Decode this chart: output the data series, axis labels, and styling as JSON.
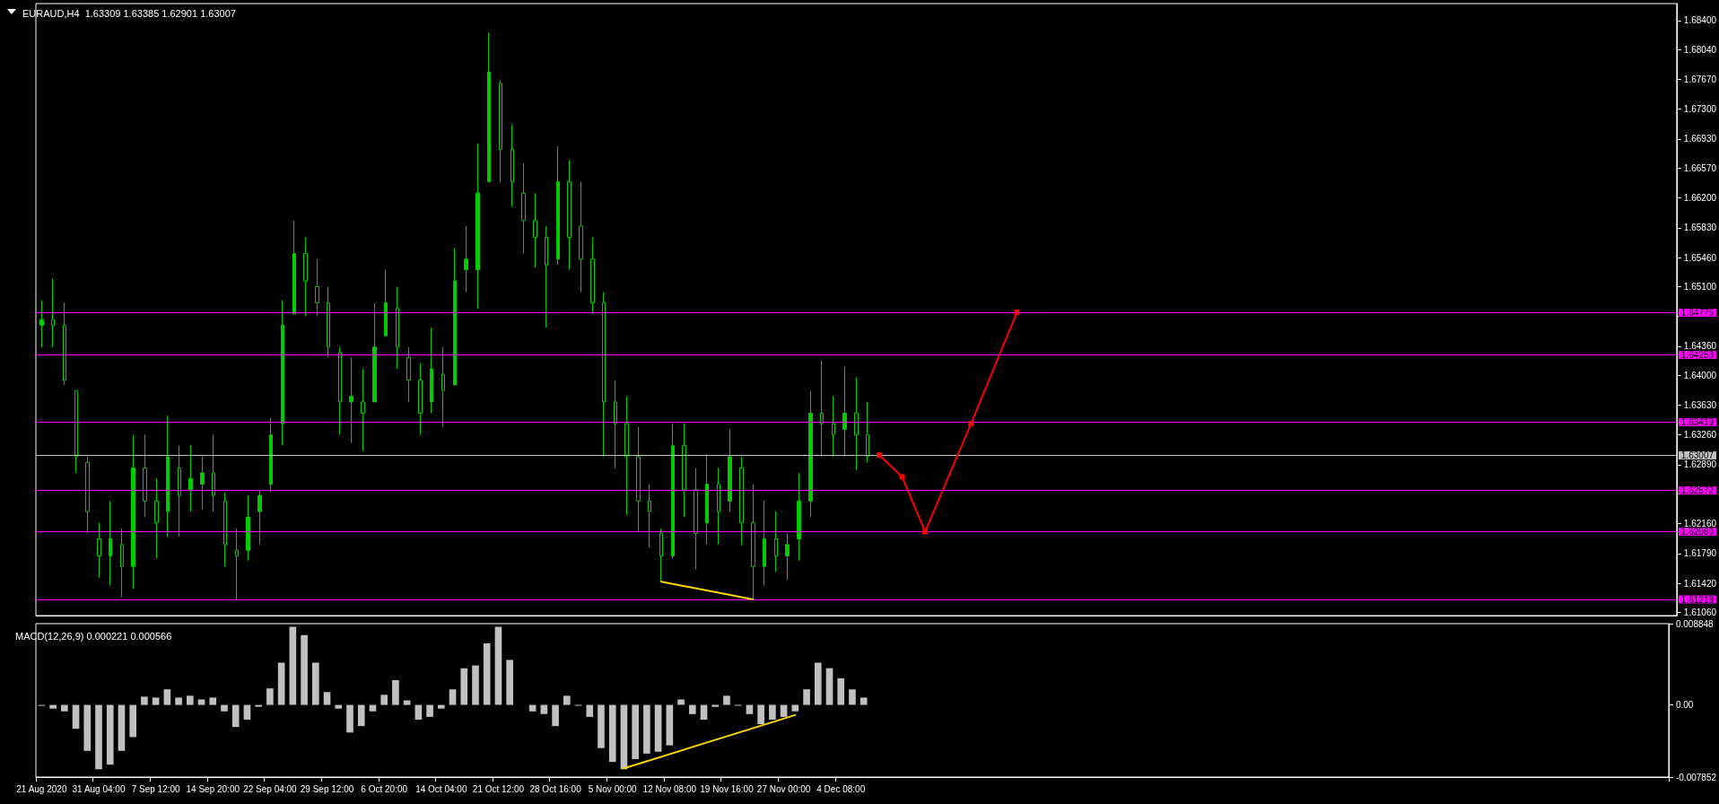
{
  "chart_data": [
    {
      "type": "candlestick",
      "title": "EURAUD,H4  1.63309 1.63385 1.62901 1.63007",
      "color": "#00cc00",
      "tick_labels": "y",
      "grid": false,
      "categories": [
        null,
        null,
        null,
        null,
        null,
        null,
        null,
        null,
        null,
        null,
        null,
        null,
        null,
        null,
        null,
        null,
        null,
        null,
        null,
        null,
        null,
        null,
        null,
        null,
        null,
        null,
        null,
        null,
        null,
        null,
        null,
        null,
        null,
        null,
        null,
        null,
        null,
        null,
        null,
        null,
        null,
        null,
        null,
        null,
        null,
        null,
        null,
        null,
        null,
        null,
        null,
        null,
        null,
        null,
        null,
        null,
        null,
        null,
        null,
        null,
        null,
        null,
        null,
        null,
        null,
        null,
        null,
        null,
        null,
        null,
        null,
        null,
        null,
        null,
        null,
        null,
        null,
        null,
        null,
        null,
        null,
        null,
        null,
        null,
        null,
        null,
        null,
        null,
        null,
        null,
        null,
        null,
        null,
        null,
        null,
        null,
        null,
        null,
        null,
        null,
        null,
        null,
        null,
        null,
        null,
        null,
        null,
        null,
        null,
        null,
        null,
        null,
        null,
        null,
        null,
        null,
        null,
        null,
        null,
        null,
        null,
        null,
        null,
        null,
        null,
        null,
        null,
        null,
        null,
        null,
        null,
        null,
        null,
        null,
        null,
        null,
        null,
        null,
        null,
        null,
        null,
        null,
        null
      ],
      "ohlc": [
        [
          1.6462,
          1.6493,
          1.6435,
          1.6469
        ],
        [
          1.6469,
          1.652,
          1.6435,
          1.6462
        ],
        [
          1.6462,
          1.649,
          1.6388,
          1.6394
        ],
        [
          1.6381,
          1.6381,
          1.6279,
          1.6299
        ],
        [
          1.6292,
          1.6299,
          1.6204,
          1.6231
        ],
        [
          1.6197,
          1.6217,
          1.6149,
          1.6176
        ],
        [
          1.6176,
          1.6244,
          1.6139,
          1.6197
        ],
        [
          1.619,
          1.621,
          1.6125,
          1.6163
        ],
        [
          1.6163,
          1.6326,
          1.6135,
          1.6285
        ],
        [
          1.6285,
          1.6326,
          1.6224,
          1.6244
        ],
        [
          1.6244,
          1.6272,
          1.6173,
          1.6217
        ],
        [
          1.6231,
          1.635,
          1.62,
          1.6299
        ],
        [
          1.6285,
          1.6313,
          1.62,
          1.6251
        ],
        [
          1.6258,
          1.6313,
          1.6231,
          1.6272
        ],
        [
          1.6265,
          1.6299,
          1.6234,
          1.6279
        ],
        [
          1.6279,
          1.6326,
          1.6231,
          1.6251
        ],
        [
          1.6244,
          1.6255,
          1.6163,
          1.619
        ],
        [
          1.6183,
          1.621,
          1.6122,
          1.6176
        ],
        [
          1.6183,
          1.6251,
          1.617,
          1.6224
        ],
        [
          1.6231,
          1.6258,
          1.619,
          1.6251
        ],
        [
          1.6265,
          1.6347,
          1.6255,
          1.6326
        ],
        [
          1.634,
          1.6493,
          1.6313,
          1.6462
        ],
        [
          1.6476,
          1.6592,
          1.6476,
          1.6551
        ],
        [
          1.6551,
          1.6571,
          1.6473,
          1.6517
        ],
        [
          1.651,
          1.6544,
          1.6473,
          1.649
        ],
        [
          1.649,
          1.651,
          1.6422,
          1.6435
        ],
        [
          1.6428,
          1.6435,
          1.6326,
          1.6367
        ],
        [
          1.6367,
          1.6422,
          1.6316,
          1.6374
        ],
        [
          1.6367,
          1.6408,
          1.6306,
          1.6353
        ],
        [
          1.6367,
          1.649,
          1.6367,
          1.6435
        ],
        [
          1.6449,
          1.6531,
          1.6449,
          1.649
        ],
        [
          1.6483,
          1.651,
          1.6408,
          1.6435
        ],
        [
          1.6422,
          1.6435,
          1.6367,
          1.6394
        ],
        [
          1.6394,
          1.6415,
          1.6326,
          1.6353
        ],
        [
          1.6367,
          1.6459,
          1.6353,
          1.6408
        ],
        [
          1.6401,
          1.6435,
          1.6336,
          1.6381
        ],
        [
          1.6388,
          1.6558,
          1.6388,
          1.6517
        ],
        [
          1.6531,
          1.6585,
          1.6503,
          1.6544
        ],
        [
          1.6531,
          1.6687,
          1.6483,
          1.6626
        ],
        [
          1.664,
          1.6825,
          1.664,
          1.6776
        ],
        [
          1.6762,
          1.6766,
          1.664,
          1.668
        ],
        [
          1.668,
          1.6711,
          1.6609,
          1.664
        ],
        [
          1.6626,
          1.6663,
          1.6551,
          1.6592
        ],
        [
          1.6592,
          1.6626,
          1.6534,
          1.6571
        ],
        [
          1.6571,
          1.6585,
          1.6459,
          1.6537
        ],
        [
          1.6544,
          1.6684,
          1.6537,
          1.664
        ],
        [
          1.664,
          1.6667,
          1.6531,
          1.6571
        ],
        [
          1.6585,
          1.664,
          1.6503,
          1.6544
        ],
        [
          1.6544,
          1.6571,
          1.6476,
          1.649
        ],
        [
          1.649,
          1.6503,
          1.6299,
          1.6367
        ],
        [
          1.6367,
          1.6394,
          1.6285,
          1.634
        ],
        [
          1.634,
          1.6374,
          1.6227,
          1.6299
        ],
        [
          1.6299,
          1.6336,
          1.6207,
          1.6244
        ],
        [
          1.6244,
          1.6265,
          1.6187,
          1.6231
        ],
        [
          1.6204,
          1.621,
          1.6144,
          1.6176
        ],
        [
          1.6176,
          1.634,
          1.6173,
          1.6313
        ],
        [
          1.6313,
          1.634,
          1.6224,
          1.6258
        ],
        [
          1.6258,
          1.6285,
          1.6159,
          1.6204
        ],
        [
          1.6217,
          1.6302,
          1.619,
          1.6265
        ],
        [
          1.6265,
          1.6285,
          1.619,
          1.6231
        ],
        [
          1.6244,
          1.6333,
          1.6231,
          1.6299
        ],
        [
          1.6285,
          1.6299,
          1.619,
          1.6217
        ],
        [
          1.6217,
          1.6265,
          1.6122,
          1.6163
        ],
        [
          1.6163,
          1.6244,
          1.6139,
          1.6197
        ],
        [
          1.6197,
          1.6231,
          1.6156,
          1.6176
        ],
        [
          1.6176,
          1.6204,
          1.6146,
          1.619
        ],
        [
          1.6197,
          1.6279,
          1.617,
          1.6244
        ],
        [
          1.6244,
          1.6381,
          1.6224,
          1.6353
        ],
        [
          1.6353,
          1.6418,
          1.6299,
          1.634
        ],
        [
          1.634,
          1.6374,
          1.6299,
          1.6326
        ],
        [
          1.6333,
          1.6411,
          1.6299,
          1.6353
        ],
        [
          1.6353,
          1.6398,
          1.6282,
          1.6326
        ],
        [
          1.6326,
          1.6367,
          1.6292,
          1.6299
        ],
        null,
        null,
        null,
        null,
        null,
        null,
        null,
        null,
        null,
        null,
        null,
        null,
        null,
        null,
        null,
        null,
        null,
        null,
        null,
        null,
        null,
        null,
        null,
        null,
        null,
        null,
        null,
        null,
        null,
        null,
        null,
        null,
        null,
        null,
        null,
        null,
        null,
        null,
        null,
        null,
        null,
        null,
        null,
        null,
        null,
        null,
        null,
        null,
        null,
        null,
        null,
        null,
        null,
        null,
        null,
        null,
        null,
        null,
        null,
        null,
        null,
        null,
        null,
        null,
        null,
        null,
        null,
        null,
        null,
        null
      ],
      "ylim": [
        1.6102,
        1.6861
      ],
      "yticks": [
        {
          "value": 1.684,
          "label": "1.68400"
        },
        {
          "value": 1.6804,
          "label": "1.68040"
        },
        {
          "value": 1.6767,
          "label": "1.67670"
        },
        {
          "value": 1.673,
          "label": "1.67300"
        },
        {
          "value": 1.6693,
          "label": "1.66930"
        },
        {
          "value": 1.6657,
          "label": "1.66570"
        },
        {
          "value": 1.662,
          "label": "1.66200"
        },
        {
          "value": 1.6583,
          "label": "1.65830"
        },
        {
          "value": 1.6546,
          "label": "1.65460"
        },
        {
          "value": 1.651,
          "label": "1.65100"
        },
        {
          "value": 1.6473,
          "label": null
        },
        {
          "value": 1.6436,
          "label": "1.64360"
        },
        {
          "value": 1.64,
          "label": "1.64000"
        },
        {
          "value": 1.6363,
          "label": "1.63630"
        },
        {
          "value": 1.6326,
          "label": "1.63260"
        },
        {
          "value": 1.6289,
          "label": "1.62890"
        },
        {
          "value": 1.6253,
          "label": null
        },
        {
          "value": 1.6216,
          "label": "1.62160"
        },
        {
          "value": 1.6179,
          "label": "1.61790"
        },
        {
          "value": 1.6142,
          "label": "1.61420"
        },
        {
          "value": 1.6106,
          "label": "1.61060"
        }
      ],
      "ref_lines": [
        {
          "axis": "y",
          "value": 1.64775,
          "label": "1.64775",
          "color": "#ff00ff"
        },
        {
          "axis": "y",
          "value": 1.64253,
          "label": "1.64253",
          "color": "#ff00ff"
        },
        {
          "axis": "y",
          "value": 1.63419,
          "label": "1.63419",
          "color": "#ff00ff"
        },
        {
          "axis": "y",
          "value": 1.63007,
          "label": "1.63007",
          "color": "#c0c0c0"
        },
        {
          "axis": "y",
          "value": 1.62572,
          "label": "1.62572",
          "color": "#ff00ff"
        },
        {
          "axis": "y",
          "value": 1.6206,
          "label": "1.62060",
          "color": "#ff00ff"
        },
        {
          "axis": "y",
          "value": 1.61219,
          "label": "1.61219",
          "color": "#ff00ff"
        }
      ],
      "series": [
        {
          "type": "line",
          "color": "#ff0000",
          "marker": "square",
          "values": [
            null,
            null,
            null,
            null,
            null,
            null,
            null,
            null,
            null,
            null,
            null,
            null,
            null,
            null,
            null,
            null,
            null,
            null,
            null,
            null,
            null,
            null,
            null,
            null,
            null,
            null,
            null,
            null,
            null,
            null,
            null,
            null,
            null,
            null,
            null,
            null,
            null,
            null,
            null,
            null,
            null,
            null,
            null,
            null,
            null,
            null,
            null,
            null,
            null,
            null,
            null,
            null,
            null,
            null,
            null,
            null,
            null,
            null,
            null,
            null,
            null,
            null,
            null,
            null,
            null,
            null,
            null,
            null,
            null,
            null,
            null,
            null,
            null,
            1.6301,
            null,
            1.6274,
            null,
            1.6206,
            null,
            null,
            null,
            1.634,
            null,
            null,
            null,
            1.6478,
            null,
            null,
            null,
            null,
            null,
            null,
            null,
            null,
            null,
            null,
            null,
            null,
            null,
            null,
            null,
            null,
            null,
            null,
            null,
            null,
            null,
            null,
            null,
            null,
            null,
            null,
            null,
            null,
            null,
            null,
            null,
            null,
            null,
            null,
            null,
            null,
            null,
            null,
            null,
            null,
            null,
            null,
            null,
            null,
            null,
            null,
            null,
            null,
            null,
            null,
            null,
            null,
            null,
            null,
            null,
            null,
            null
          ]
        },
        {
          "type": "line",
          "color": "#ffd700",
          "marker": "none",
          "values": [
            null,
            null,
            null,
            null,
            null,
            null,
            null,
            null,
            null,
            null,
            null,
            null,
            null,
            null,
            null,
            null,
            null,
            null,
            null,
            null,
            null,
            null,
            null,
            null,
            null,
            null,
            null,
            null,
            null,
            null,
            null,
            null,
            null,
            null,
            null,
            null,
            null,
            null,
            null,
            null,
            null,
            null,
            null,
            null,
            null,
            null,
            null,
            null,
            null,
            null,
            null,
            null,
            null,
            null,
            1.6144,
            null,
            null,
            null,
            null,
            null,
            null,
            null,
            1.6122,
            null,
            null,
            null,
            null,
            null,
            null,
            null,
            null,
            null,
            null,
            null,
            null,
            null,
            null,
            null,
            null,
            null,
            null,
            null,
            null,
            null,
            null,
            null,
            null,
            null,
            null,
            null,
            null,
            null,
            null,
            null,
            null,
            null,
            null,
            null,
            null,
            null,
            null,
            null,
            null,
            null,
            null,
            null,
            null,
            null,
            null,
            null,
            null,
            null,
            null,
            null,
            null,
            null,
            null,
            null,
            null,
            null,
            null,
            null,
            null,
            null,
            null,
            null,
            null,
            null,
            null,
            null,
            null,
            null,
            null,
            null,
            null,
            null,
            null,
            null,
            null,
            null,
            null,
            null,
            null
          ]
        }
      ]
    },
    {
      "type": "bar",
      "title": "MACD(12,26,9) 0.000221 0.000566",
      "color": "#c0c0c0",
      "grid": false,
      "categories": [
        "21 Aug 2020",
        null,
        null,
        null,
        null,
        "31 Aug 04:00",
        null,
        null,
        null,
        null,
        "7 Sep 12:00",
        null,
        null,
        null,
        null,
        "14 Sep 20:00",
        null,
        null,
        null,
        null,
        "22 Sep 04:00",
        null,
        null,
        null,
        null,
        "29 Sep 12:00",
        null,
        null,
        null,
        null,
        "6 Oct 20:00",
        null,
        null,
        null,
        null,
        "14 Oct 04:00",
        null,
        null,
        null,
        null,
        "21 Oct 12:00",
        null,
        null,
        null,
        null,
        "28 Oct 16:00",
        null,
        null,
        null,
        null,
        "5 Nov 00:00",
        null,
        null,
        null,
        null,
        "12 Nov 08:00",
        null,
        null,
        null,
        null,
        "19 Nov 16:00",
        null,
        null,
        null,
        null,
        "27 Nov 00:00",
        null,
        null,
        null,
        null,
        "4 Dec 08:00",
        null,
        null,
        null,
        null,
        null,
        null,
        null,
        null,
        null,
        null,
        null,
        null,
        null,
        null,
        null,
        null,
        null,
        null,
        null,
        null,
        null,
        null,
        null,
        null,
        null,
        null,
        null,
        null,
        null,
        null,
        null,
        null,
        null,
        null,
        null,
        null,
        null,
        null,
        null,
        null,
        null,
        null,
        null,
        null,
        null,
        null,
        null,
        null,
        null,
        null,
        null,
        null,
        null,
        null,
        null,
        null,
        null,
        null,
        null,
        null,
        null,
        null,
        null,
        null,
        null,
        null,
        null,
        null,
        null,
        null,
        null,
        null
      ],
      "values": [
        -0.0001,
        -0.0004,
        -0.0007,
        -0.0026,
        -0.005,
        -0.007,
        -0.0065,
        -0.005,
        -0.0035,
        0.0009,
        0.0008,
        0.0017,
        0.0008,
        0.001,
        0.0006,
        0.0008,
        -0.0007,
        -0.0024,
        -0.0016,
        -0.0002,
        0.0018,
        0.0046,
        0.0085,
        0.0076,
        0.0046,
        0.0014,
        -0.0004,
        -0.003,
        -0.0023,
        -0.0007,
        0.0011,
        0.0027,
        0.0005,
        -0.0016,
        -0.0013,
        -0.0004,
        0.0017,
        0.004,
        0.0043,
        0.0067,
        0.0085,
        0.0049,
        0,
        -0.0007,
        -0.001,
        -0.0023,
        0.001,
        -0.0001,
        -0.0013,
        -0.0047,
        -0.0062,
        -0.007,
        -0.0059,
        -0.0053,
        -0.0051,
        -0.0044,
        0.0006,
        -0.001,
        -0.0016,
        -0.0002,
        0.001,
        -0.0001,
        -0.001,
        -0.0021,
        -0.0016,
        -0.0013,
        -0.0007,
        0.0017,
        0.0046,
        0.004,
        0.0029,
        0.0017,
        0.0008,
        null,
        null,
        null,
        null,
        null,
        null,
        null,
        null,
        null,
        null,
        null,
        null,
        null,
        null,
        null,
        null,
        null,
        null,
        null,
        null,
        null,
        null,
        null,
        null,
        null,
        null,
        null,
        null,
        null,
        null,
        null,
        null,
        null,
        null,
        null,
        null,
        null,
        null,
        null,
        null,
        null,
        null,
        null,
        null,
        null,
        null,
        null,
        null,
        null,
        null,
        null,
        null,
        null,
        null,
        null,
        null,
        null,
        null,
        null,
        null,
        null,
        null,
        null,
        null,
        null,
        null,
        null,
        null,
        null,
        null
      ],
      "ylim": [
        -0.007852,
        0.008848
      ],
      "yticks": [
        0.008848,
        {
          "value": 0,
          "label": "0.00"
        },
        -0.007852
      ],
      "series": [
        {
          "type": "line",
          "color": "#ffd700",
          "marker": "none",
          "values": [
            null,
            null,
            null,
            null,
            null,
            null,
            null,
            null,
            null,
            null,
            null,
            null,
            null,
            null,
            null,
            null,
            null,
            null,
            null,
            null,
            null,
            null,
            null,
            null,
            null,
            null,
            null,
            null,
            null,
            null,
            null,
            null,
            null,
            null,
            null,
            null,
            null,
            null,
            null,
            null,
            null,
            null,
            null,
            null,
            null,
            null,
            null,
            null,
            null,
            null,
            null,
            -0.0069,
            null,
            null,
            null,
            null,
            null,
            null,
            null,
            null,
            null,
            null,
            null,
            null,
            null,
            null,
            -0.0011,
            null,
            null,
            null,
            null,
            null,
            null,
            null,
            null,
            null,
            null,
            null,
            null,
            null,
            null,
            null,
            null,
            null,
            null,
            null,
            null,
            null,
            null,
            null,
            null,
            null,
            null,
            null,
            null,
            null,
            null,
            null,
            null,
            null,
            null,
            null,
            null,
            null,
            null,
            null,
            null,
            null,
            null,
            null,
            null,
            null,
            null,
            null,
            null,
            null,
            null,
            null,
            null,
            null,
            null,
            null,
            null,
            null,
            null,
            null,
            null,
            null,
            null,
            null,
            null,
            null,
            null,
            null,
            null,
            null,
            null,
            null,
            null,
            null,
            null,
            null,
            null
          ]
        }
      ]
    }
  ]
}
